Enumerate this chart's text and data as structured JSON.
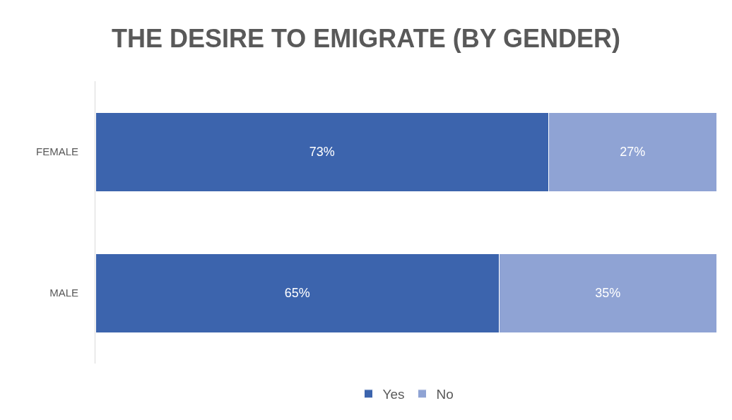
{
  "chart_data": {
    "type": "bar",
    "title": "THE DESIRE TO EMIGRATE (BY GENDER)",
    "orientation": "horizontal",
    "stacked": true,
    "categories": [
      "FEMALE",
      "MALE"
    ],
    "series": [
      {
        "name": "Yes",
        "color": "#3c64ad",
        "values": [
          73,
          65
        ],
        "value_labels": [
          "73%",
          "65%"
        ]
      },
      {
        "name": "No",
        "color": "#8fa3d4",
        "values": [
          27,
          35
        ],
        "value_labels": [
          "27%",
          "35%"
        ]
      }
    ],
    "xlim": [
      0,
      100
    ],
    "tick_labels": "y",
    "legend": "bottom"
  }
}
